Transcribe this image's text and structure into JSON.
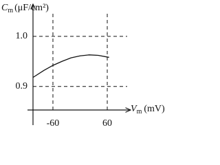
{
  "chart_data": {
    "type": "line",
    "ylabel_symbol": "C",
    "ylabel_subscript": "m",
    "ylabel_unit": "(μF/cm²)",
    "xlabel_symbol": "V",
    "xlabel_subscript": "m",
    "xlabel_unit": "(mV)",
    "x": [
      -104,
      -80,
      -60,
      -40,
      -20,
      0,
      20,
      40,
      64
    ],
    "series": [
      {
        "color": "#111111",
        "values": [
          0.918,
          0.932,
          0.942,
          0.95,
          0.957,
          0.961,
          0.963,
          0.962,
          0.958
        ]
      }
    ],
    "xlim": [
      -104,
      104
    ],
    "ylim": [
      0.853,
      1.056
    ],
    "xticks": [
      -60,
      60
    ],
    "yticks": [
      0.9,
      {
        "value": 1,
        "label": "1.0"
      }
    ],
    "grid": true
  }
}
